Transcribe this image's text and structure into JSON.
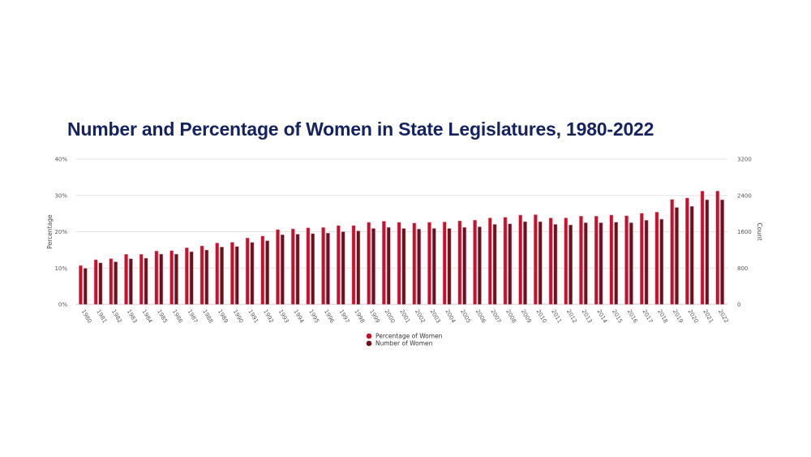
{
  "chart_data": {
    "type": "bar",
    "title": "Number and Percentage of Women in State Legislatures, 1980-2022",
    "ylabel": "Percentage",
    "y2label": "Count",
    "ylim": [
      0,
      40
    ],
    "y2lim": [
      0,
      3200
    ],
    "yticks": [
      "0%",
      "10%",
      "20%",
      "30%",
      "40%"
    ],
    "y2ticks": [
      "0",
      "800",
      "1600",
      "2400",
      "3200"
    ],
    "grid": true,
    "legend_position": "bottom",
    "categories": [
      "1980",
      "1981",
      "1982",
      "1983",
      "1984",
      "1985",
      "1986",
      "1987",
      "1988",
      "1989",
      "1990",
      "1991",
      "1992",
      "1993",
      "1994",
      "1995",
      "1996",
      "1997",
      "1998",
      "1999",
      "2000",
      "2001",
      "2002",
      "2003",
      "2004",
      "2005",
      "2006",
      "2007",
      "2008",
      "2009",
      "2010",
      "2011",
      "2012",
      "2013",
      "2014",
      "2015",
      "2016",
      "2017",
      "2018",
      "2019",
      "2020",
      "2021",
      "2022"
    ],
    "series": [
      {
        "name": "Percentage of Women",
        "axis": "left",
        "color": "#c8102e",
        "values": [
          10.7,
          12.3,
          12.6,
          13.8,
          13.8,
          14.7,
          14.8,
          15.6,
          16.1,
          16.9,
          17.1,
          18.3,
          18.8,
          20.6,
          20.8,
          21.1,
          21.2,
          21.7,
          21.7,
          22.6,
          22.9,
          22.6,
          22.4,
          22.6,
          22.7,
          23.0,
          23.2,
          23.8,
          24.0,
          24.6,
          24.7,
          23.8,
          23.8,
          24.3,
          24.3,
          24.6,
          24.4,
          25.1,
          25.4,
          28.9,
          29.3,
          31.2,
          31.2
        ]
      },
      {
        "name": "Number of Women",
        "axis": "right",
        "color": "#6e0f1e",
        "values": [
          794,
          914,
          938,
          1005,
          1017,
          1107,
          1107,
          1161,
          1197,
          1263,
          1275,
          1365,
          1402,
          1534,
          1546,
          1558,
          1570,
          1600,
          1618,
          1672,
          1696,
          1672,
          1660,
          1672,
          1672,
          1696,
          1708,
          1762,
          1774,
          1822,
          1822,
          1762,
          1750,
          1798,
          1798,
          1810,
          1798,
          1852,
          1876,
          2135,
          2159,
          2304,
          2304
        ]
      }
    ]
  }
}
